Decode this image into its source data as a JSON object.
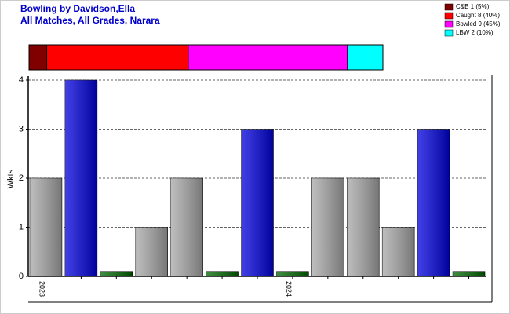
{
  "chart_data": [
    {
      "type": "stacked_bar",
      "xlim": [
        0,
        100
      ],
      "series": [
        {
          "name": "C&B 1 (5%)",
          "color": "#800000",
          "values": [
            5
          ]
        },
        {
          "name": "Caught 8 (40%)",
          "color": "#ff0000",
          "values": [
            40
          ]
        },
        {
          "name": "Bowled 9 (45%)",
          "color": "#ff00ff",
          "values": [
            45
          ]
        },
        {
          "name": "LBW 2 (10%)",
          "color": "#00ffff",
          "values": [
            10
          ]
        }
      ]
    },
    {
      "type": "bar",
      "title": "Bowling by Davidson,Ella",
      "subtitle": "All Matches, All Grades, Narara",
      "y_label": "Wkts",
      "categories": [
        "2023",
        null,
        null,
        null,
        null,
        null,
        null,
        "2024",
        null,
        null,
        null,
        null,
        null
      ],
      "values": [
        2,
        4,
        0.1,
        1,
        2,
        0.1,
        3,
        0.1,
        2,
        2,
        1,
        3,
        0.1
      ],
      "colors": [
        "#a8a8a8",
        "#0000dd",
        "#006600",
        "#a8a8a8",
        "#a8a8a8",
        "#006600",
        "#0000dd",
        "#006600",
        "#a8a8a8",
        "#a8a8a8",
        "#a8a8a8",
        "#0000dd",
        "#006600"
      ],
      "ylim": [
        0,
        4
      ],
      "yticks": [
        0,
        1,
        2,
        3,
        4
      ],
      "grid": true
    }
  ]
}
